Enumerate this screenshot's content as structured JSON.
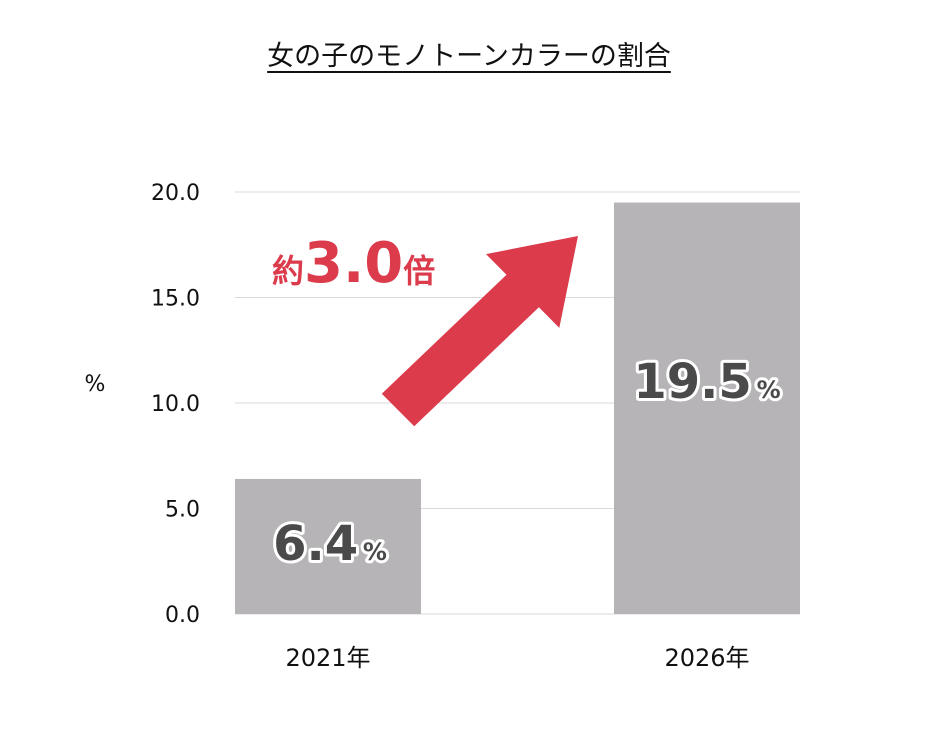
{
  "chart_data": {
    "type": "bar",
    "title": "女の子のモノトーンカラーの割合",
    "ylabel": "%",
    "categories": [
      "2021年",
      "2026年"
    ],
    "values": [
      6.4,
      19.5
    ],
    "ylim": [
      0,
      20
    ],
    "yticks": [
      "0.0",
      "5.0",
      "10.0",
      "15.0",
      "20.0"
    ],
    "data_labels": [
      {
        "number": "6.4",
        "unit": "%"
      },
      {
        "number": "19.5",
        "unit": "%"
      }
    ],
    "annotation": {
      "prefix": "約",
      "number": "3.0",
      "suffix": "倍"
    },
    "grid": true,
    "colors": {
      "bar": "#b7b4b7",
      "arrow": "#dc3b4c",
      "label": "#4a4a4a",
      "grid": "#d9d9d9"
    }
  }
}
